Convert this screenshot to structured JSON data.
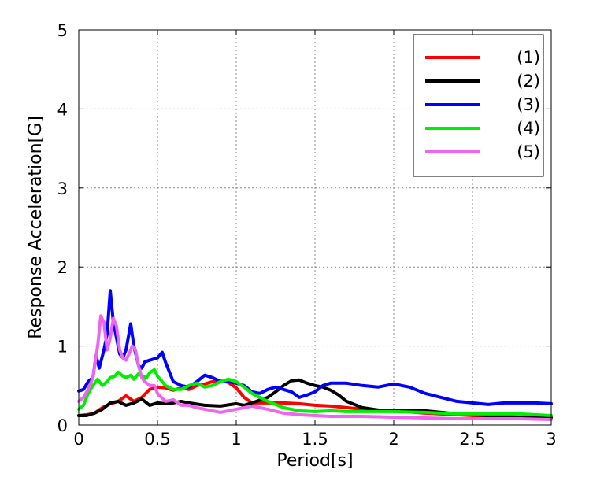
{
  "chart_data": {
    "type": "line",
    "title": "",
    "xlabel": "Period[s]",
    "ylabel": "Response Acceleration[G]",
    "xlim": [
      0,
      3
    ],
    "ylim": [
      0,
      5
    ],
    "xticks": [
      0,
      0.5,
      1,
      1.5,
      2,
      2.5,
      3
    ],
    "xtick_labels": [
      "0",
      "0.5",
      "1",
      "1.5",
      "2",
      "2.5",
      "3"
    ],
    "yticks": [
      0,
      1,
      2,
      3,
      4,
      5
    ],
    "ytick_labels": [
      "0",
      "1",
      "2",
      "3",
      "4",
      "5"
    ],
    "grid": true,
    "legend_position": "top-right",
    "series": [
      {
        "name": "(1)",
        "color": "#ff0000",
        "points": [
          [
            0.0,
            0.12
          ],
          [
            0.05,
            0.13
          ],
          [
            0.1,
            0.15
          ],
          [
            0.15,
            0.22
          ],
          [
            0.2,
            0.27
          ],
          [
            0.25,
            0.3
          ],
          [
            0.3,
            0.37
          ],
          [
            0.35,
            0.3
          ],
          [
            0.4,
            0.35
          ],
          [
            0.45,
            0.45
          ],
          [
            0.5,
            0.48
          ],
          [
            0.55,
            0.47
          ],
          [
            0.6,
            0.44
          ],
          [
            0.65,
            0.47
          ],
          [
            0.7,
            0.45
          ],
          [
            0.75,
            0.5
          ],
          [
            0.8,
            0.52
          ],
          [
            0.85,
            0.55
          ],
          [
            0.9,
            0.56
          ],
          [
            0.95,
            0.54
          ],
          [
            1.0,
            0.47
          ],
          [
            1.05,
            0.35
          ],
          [
            1.1,
            0.28
          ],
          [
            1.2,
            0.28
          ],
          [
            1.3,
            0.28
          ],
          [
            1.4,
            0.27
          ],
          [
            1.5,
            0.25
          ],
          [
            1.6,
            0.24
          ],
          [
            1.7,
            0.22
          ],
          [
            1.8,
            0.2
          ],
          [
            2.0,
            0.18
          ],
          [
            2.2,
            0.15
          ],
          [
            2.4,
            0.13
          ],
          [
            2.6,
            0.11
          ],
          [
            2.8,
            0.1
          ],
          [
            3.0,
            0.1
          ]
        ]
      },
      {
        "name": "(2)",
        "color": "#000000",
        "points": [
          [
            0.0,
            0.12
          ],
          [
            0.05,
            0.12
          ],
          [
            0.1,
            0.15
          ],
          [
            0.15,
            0.2
          ],
          [
            0.2,
            0.28
          ],
          [
            0.25,
            0.3
          ],
          [
            0.3,
            0.25
          ],
          [
            0.35,
            0.28
          ],
          [
            0.4,
            0.33
          ],
          [
            0.45,
            0.25
          ],
          [
            0.5,
            0.28
          ],
          [
            0.55,
            0.27
          ],
          [
            0.6,
            0.28
          ],
          [
            0.65,
            0.3
          ],
          [
            0.7,
            0.28
          ],
          [
            0.8,
            0.25
          ],
          [
            0.9,
            0.24
          ],
          [
            1.0,
            0.27
          ],
          [
            1.05,
            0.25
          ],
          [
            1.1,
            0.28
          ],
          [
            1.2,
            0.35
          ],
          [
            1.25,
            0.42
          ],
          [
            1.3,
            0.5
          ],
          [
            1.35,
            0.56
          ],
          [
            1.4,
            0.57
          ],
          [
            1.45,
            0.53
          ],
          [
            1.5,
            0.5
          ],
          [
            1.55,
            0.48
          ],
          [
            1.6,
            0.44
          ],
          [
            1.65,
            0.38
          ],
          [
            1.7,
            0.3
          ],
          [
            1.8,
            0.22
          ],
          [
            1.9,
            0.19
          ],
          [
            2.0,
            0.18
          ],
          [
            2.2,
            0.18
          ],
          [
            2.4,
            0.14
          ],
          [
            2.6,
            0.12
          ],
          [
            2.8,
            0.1
          ],
          [
            3.0,
            0.09
          ]
        ]
      },
      {
        "name": "(3)",
        "color": "#0000ff",
        "points": [
          [
            0.0,
            0.43
          ],
          [
            0.03,
            0.45
          ],
          [
            0.06,
            0.55
          ],
          [
            0.09,
            0.6
          ],
          [
            0.11,
            0.88
          ],
          [
            0.13,
            0.72
          ],
          [
            0.16,
            0.95
          ],
          [
            0.18,
            1.15
          ],
          [
            0.2,
            1.7
          ],
          [
            0.22,
            1.3
          ],
          [
            0.24,
            1.1
          ],
          [
            0.26,
            0.9
          ],
          [
            0.28,
            0.85
          ],
          [
            0.3,
            0.95
          ],
          [
            0.33,
            1.28
          ],
          [
            0.35,
            1.0
          ],
          [
            0.38,
            0.75
          ],
          [
            0.4,
            0.72
          ],
          [
            0.42,
            0.8
          ],
          [
            0.45,
            0.82
          ],
          [
            0.5,
            0.85
          ],
          [
            0.53,
            0.92
          ],
          [
            0.55,
            0.8
          ],
          [
            0.6,
            0.55
          ],
          [
            0.65,
            0.5
          ],
          [
            0.7,
            0.48
          ],
          [
            0.75,
            0.55
          ],
          [
            0.8,
            0.63
          ],
          [
            0.85,
            0.6
          ],
          [
            0.9,
            0.55
          ],
          [
            0.95,
            0.55
          ],
          [
            1.0,
            0.53
          ],
          [
            1.05,
            0.5
          ],
          [
            1.1,
            0.42
          ],
          [
            1.15,
            0.4
          ],
          [
            1.2,
            0.45
          ],
          [
            1.25,
            0.48
          ],
          [
            1.3,
            0.45
          ],
          [
            1.35,
            0.42
          ],
          [
            1.4,
            0.35
          ],
          [
            1.45,
            0.38
          ],
          [
            1.5,
            0.42
          ],
          [
            1.55,
            0.5
          ],
          [
            1.6,
            0.53
          ],
          [
            1.7,
            0.53
          ],
          [
            1.8,
            0.5
          ],
          [
            1.9,
            0.48
          ],
          [
            2.0,
            0.52
          ],
          [
            2.1,
            0.48
          ],
          [
            2.2,
            0.4
          ],
          [
            2.3,
            0.35
          ],
          [
            2.4,
            0.3
          ],
          [
            2.5,
            0.28
          ],
          [
            2.6,
            0.26
          ],
          [
            2.7,
            0.28
          ],
          [
            2.8,
            0.28
          ],
          [
            2.9,
            0.28
          ],
          [
            3.0,
            0.27
          ]
        ]
      },
      {
        "name": "(4)",
        "color": "#00ee00",
        "points": [
          [
            0.0,
            0.2
          ],
          [
            0.03,
            0.25
          ],
          [
            0.06,
            0.4
          ],
          [
            0.09,
            0.5
          ],
          [
            0.12,
            0.58
          ],
          [
            0.15,
            0.5
          ],
          [
            0.18,
            0.55
          ],
          [
            0.2,
            0.6
          ],
          [
            0.23,
            0.62
          ],
          [
            0.25,
            0.67
          ],
          [
            0.28,
            0.62
          ],
          [
            0.3,
            0.6
          ],
          [
            0.33,
            0.63
          ],
          [
            0.35,
            0.58
          ],
          [
            0.38,
            0.65
          ],
          [
            0.4,
            0.62
          ],
          [
            0.43,
            0.6
          ],
          [
            0.45,
            0.66
          ],
          [
            0.48,
            0.7
          ],
          [
            0.5,
            0.62
          ],
          [
            0.53,
            0.55
          ],
          [
            0.55,
            0.5
          ],
          [
            0.6,
            0.45
          ],
          [
            0.65,
            0.45
          ],
          [
            0.7,
            0.5
          ],
          [
            0.75,
            0.53
          ],
          [
            0.8,
            0.48
          ],
          [
            0.85,
            0.5
          ],
          [
            0.9,
            0.55
          ],
          [
            0.95,
            0.58
          ],
          [
            1.0,
            0.55
          ],
          [
            1.05,
            0.48
          ],
          [
            1.1,
            0.4
          ],
          [
            1.2,
            0.3
          ],
          [
            1.3,
            0.22
          ],
          [
            1.4,
            0.18
          ],
          [
            1.5,
            0.17
          ],
          [
            1.6,
            0.18
          ],
          [
            1.7,
            0.17
          ],
          [
            1.8,
            0.17
          ],
          [
            2.0,
            0.17
          ],
          [
            2.2,
            0.16
          ],
          [
            2.4,
            0.14
          ],
          [
            2.6,
            0.14
          ],
          [
            2.8,
            0.14
          ],
          [
            3.0,
            0.12
          ]
        ]
      },
      {
        "name": "(5)",
        "color": "#ee66ee",
        "points": [
          [
            0.0,
            0.3
          ],
          [
            0.03,
            0.35
          ],
          [
            0.06,
            0.45
          ],
          [
            0.09,
            0.6
          ],
          [
            0.12,
            1.0
          ],
          [
            0.14,
            1.38
          ],
          [
            0.16,
            1.3
          ],
          [
            0.18,
            0.95
          ],
          [
            0.2,
            1.1
          ],
          [
            0.22,
            1.35
          ],
          [
            0.24,
            1.25
          ],
          [
            0.26,
            0.95
          ],
          [
            0.28,
            0.85
          ],
          [
            0.3,
            0.82
          ],
          [
            0.32,
            0.9
          ],
          [
            0.34,
            1.0
          ],
          [
            0.36,
            0.95
          ],
          [
            0.38,
            0.75
          ],
          [
            0.4,
            0.6
          ],
          [
            0.42,
            0.55
          ],
          [
            0.45,
            0.5
          ],
          [
            0.48,
            0.5
          ],
          [
            0.5,
            0.4
          ],
          [
            0.55,
            0.3
          ],
          [
            0.6,
            0.32
          ],
          [
            0.65,
            0.25
          ],
          [
            0.7,
            0.25
          ],
          [
            0.75,
            0.22
          ],
          [
            0.8,
            0.2
          ],
          [
            0.85,
            0.18
          ],
          [
            0.9,
            0.16
          ],
          [
            0.95,
            0.18
          ],
          [
            1.0,
            0.2
          ],
          [
            1.05,
            0.22
          ],
          [
            1.1,
            0.24
          ],
          [
            1.15,
            0.22
          ],
          [
            1.2,
            0.2
          ],
          [
            1.3,
            0.15
          ],
          [
            1.4,
            0.13
          ],
          [
            1.5,
            0.12
          ],
          [
            1.6,
            0.11
          ],
          [
            1.8,
            0.11
          ],
          [
            2.0,
            0.1
          ],
          [
            2.2,
            0.09
          ],
          [
            2.4,
            0.08
          ],
          [
            2.6,
            0.08
          ],
          [
            2.8,
            0.08
          ],
          [
            3.0,
            0.07
          ]
        ]
      }
    ]
  }
}
